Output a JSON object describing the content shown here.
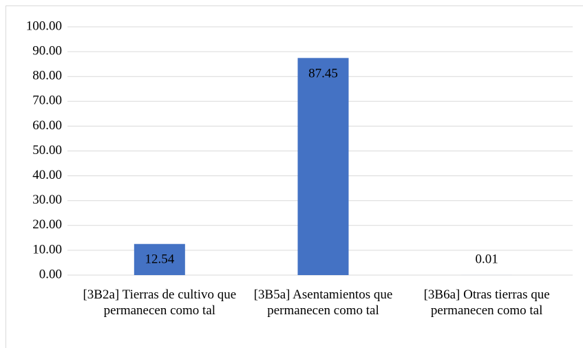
{
  "chart_data": {
    "type": "bar",
    "categories": [
      "[3B2a] Tierras de cultivo que permanecen como tal",
      "[3B5a] Asentamientos que permanecen como tal",
      "[3B6a] Otras tierras que permanecen como tal"
    ],
    "values": [
      12.54,
      87.45,
      0.01
    ],
    "color": "#4472c4",
    "ylim": [
      0,
      100
    ],
    "yticks": [
      {
        "value": 0,
        "label": "0.00"
      },
      {
        "value": 10,
        "label": "10.00"
      },
      {
        "value": 20,
        "label": "20.00"
      },
      {
        "value": 30,
        "label": "30.00"
      },
      {
        "value": 40,
        "label": "40.00"
      },
      {
        "value": 50,
        "label": "50.00"
      },
      {
        "value": 60,
        "label": "60.00"
      },
      {
        "value": 70,
        "label": "70.00"
      },
      {
        "value": 80,
        "label": "80.00"
      },
      {
        "value": 90,
        "label": "90.00"
      },
      {
        "value": 100,
        "label": "100.00"
      }
    ],
    "grid": true
  }
}
